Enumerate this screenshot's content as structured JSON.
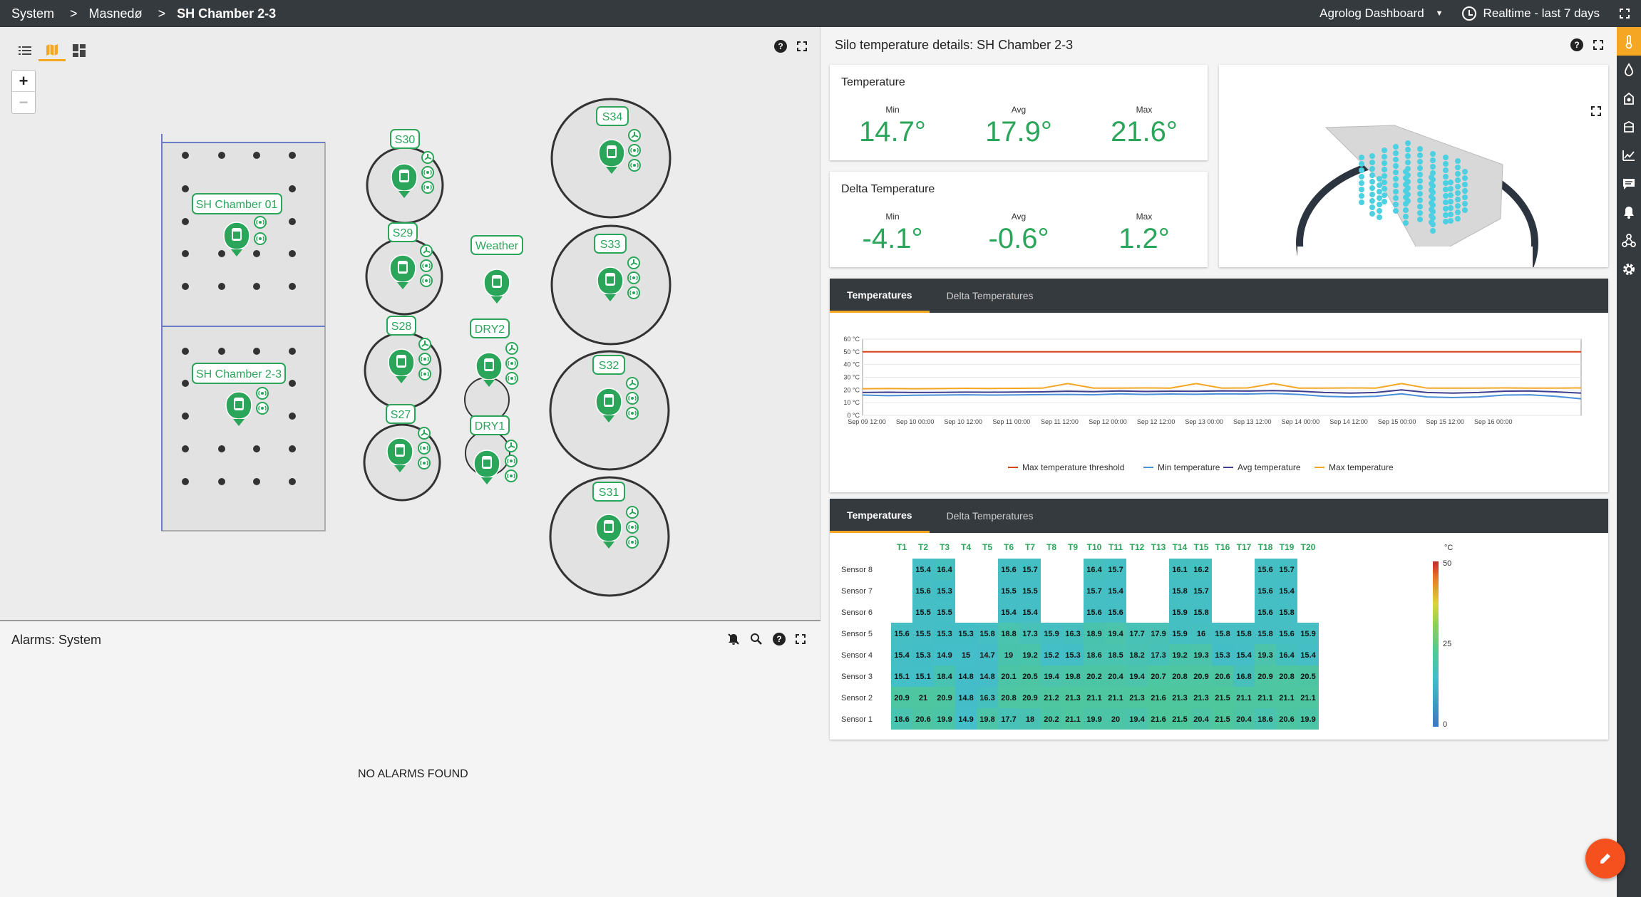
{
  "breadcrumb": {
    "items": [
      "System",
      "Masnedø",
      "SH Chamber 2-3"
    ],
    "separator": ">"
  },
  "header": {
    "dashboard": "Agrolog Dashboard",
    "time_range": "Realtime - last 7 days"
  },
  "map": {
    "labels": {
      "sh01": "SH Chamber 01",
      "sh23": "SH Chamber 2-3",
      "s30": "S30",
      "s29": "S29",
      "s28": "S28",
      "s27": "S27",
      "weather": "Weather",
      "dry2": "DRY2",
      "dry1": "DRY1",
      "s34": "S34",
      "s33": "S33",
      "s32": "S32",
      "s31": "S31"
    },
    "zoom_in": "+",
    "zoom_out": "−"
  },
  "alarms": {
    "title": "Alarms: System",
    "empty": "NO ALARMS FOUND"
  },
  "details": {
    "title": "Silo temperature details: SH Chamber 2-3",
    "temperature": {
      "title": "Temperature",
      "min_label": "Min",
      "avg_label": "Avg",
      "max_label": "Max",
      "min": "14.7°",
      "avg": "17.9°",
      "max": "21.6°"
    },
    "delta": {
      "title": "Delta Temperature",
      "min_label": "Min",
      "avg_label": "Avg",
      "max_label": "Max",
      "min": "-4.1°",
      "avg": "-0.6°",
      "max": "1.2°"
    }
  },
  "tabs": {
    "temperatures": "Temperatures",
    "delta": "Delta Temperatures"
  },
  "colors": {
    "accent": "#f5a623",
    "green": "#2aa55a",
    "topbar": "#353a3f",
    "fab": "#f4511e"
  },
  "chart_data": [
    {
      "type": "line",
      "y_ticks": [
        "0 °C",
        "10 °C",
        "20 °C",
        "30 °C",
        "40 °C",
        "50 °C",
        "60 °C"
      ],
      "ylim": [
        0,
        60
      ],
      "x_ticks": [
        "Sep 09 12:00",
        "Sep 10 00:00",
        "Sep 10 12:00",
        "Sep 11 00:00",
        "Sep 11 12:00",
        "Sep 12 00:00",
        "Sep 12 12:00",
        "Sep 13 00:00",
        "Sep 13 12:00",
        "Sep 14 00:00",
        "Sep 14 12:00",
        "Sep 15 00:00",
        "Sep 15 12:00",
        "Sep 16 00:00"
      ],
      "x": [
        0,
        0.5,
        1,
        1.5,
        2,
        2.5,
        3,
        3.5,
        4,
        4.5,
        5,
        5.5,
        6,
        6.5,
        7,
        7.5,
        8,
        8.5,
        9,
        9.5,
        10,
        10.5,
        11,
        11.5,
        12,
        12.5,
        13,
        13.5,
        14
      ],
      "series": [
        {
          "name": "Max temperature threshold",
          "color": "#d84315",
          "values": [
            50,
            50,
            50,
            50,
            50,
            50,
            50,
            50,
            50,
            50,
            50,
            50,
            50,
            50,
            50,
            50,
            50,
            50,
            50,
            50,
            50,
            50,
            50,
            50,
            50,
            50,
            50,
            50,
            50
          ]
        },
        {
          "name": "Min temperature",
          "color": "#4a90d9",
          "values": [
            16,
            15.5,
            15.8,
            16,
            16.2,
            16,
            16.1,
            16.3,
            16.5,
            16.2,
            17,
            16.5,
            16.8,
            16.6,
            17,
            16.8,
            17.2,
            16.5,
            15,
            14.5,
            15,
            17,
            14.5,
            14,
            14.5,
            16,
            16.2,
            15,
            13
          ]
        },
        {
          "name": "Avg temperature",
          "color": "#3f3f8f",
          "values": [
            18,
            18.2,
            18,
            18.1,
            18.3,
            18.2,
            18.4,
            18.5,
            19,
            18.6,
            19.2,
            18.8,
            19,
            18.9,
            19.3,
            19.1,
            19.5,
            19,
            18,
            17.5,
            18,
            20,
            18,
            17.5,
            18,
            19,
            19.2,
            18.5,
            17.5
          ]
        },
        {
          "name": "Max temperature",
          "color": "#f5a623",
          "values": [
            21,
            21.2,
            21,
            21.1,
            21.3,
            21.2,
            21.3,
            21.4,
            25,
            21.5,
            21.5,
            21.6,
            21.5,
            25,
            21.5,
            21.6,
            25,
            21.5,
            21.5,
            21.6,
            21.5,
            25,
            21.4,
            21.5,
            21.5,
            21.6,
            21.5,
            21.5,
            21.6
          ]
        }
      ]
    },
    {
      "type": "heatmap",
      "columns": [
        "T1",
        "T2",
        "T3",
        "T4",
        "T5",
        "T6",
        "T7",
        "T8",
        "T9",
        "T10",
        "T11",
        "T12",
        "T13",
        "T14",
        "T15",
        "T16",
        "T17",
        "T18",
        "T19",
        "T20"
      ],
      "rows": [
        "Sensor 8",
        "Sensor 7",
        "Sensor 6",
        "Sensor 5",
        "Sensor 4",
        "Sensor 3",
        "Sensor 2",
        "Sensor 1"
      ],
      "unit": "°C",
      "scale_labels": [
        "50",
        "25",
        "0"
      ],
      "scale": [
        0,
        50
      ],
      "values": [
        [
          null,
          "15.4",
          "16.4",
          null,
          null,
          "15.6",
          "15.7",
          null,
          null,
          "16.4",
          "15.7",
          null,
          null,
          "16.1",
          "16.2",
          null,
          null,
          "15.6",
          "15.7",
          null
        ],
        [
          null,
          "15.6",
          "15.3",
          null,
          null,
          "15.5",
          "15.5",
          null,
          null,
          "15.7",
          "15.4",
          null,
          null,
          "15.8",
          "15.7",
          null,
          null,
          "15.6",
          "15.4",
          null
        ],
        [
          null,
          "15.5",
          "15.5",
          null,
          null,
          "15.4",
          "15.4",
          null,
          null,
          "15.6",
          "15.6",
          null,
          null,
          "15.9",
          "15.8",
          null,
          null,
          "15.6",
          "15.8",
          null
        ],
        [
          "15.6",
          "15.5",
          "15.3",
          "15.3",
          "15.8",
          "18.8",
          "17.3",
          "15.9",
          "16.3",
          "18.9",
          "19.4",
          "17.7",
          "17.9",
          "15.9",
          "16",
          "15.8",
          "15.8",
          "15.8",
          "15.6",
          "15.9"
        ],
        [
          "15.4",
          "15.3",
          "14.9",
          "15",
          "14.7",
          "19",
          "19.2",
          "15.2",
          "15.3",
          "18.6",
          "18.5",
          "18.2",
          "17.3",
          "19.2",
          "19.3",
          "15.3",
          "15.4",
          "19.3",
          "16.4",
          "15.4"
        ],
        [
          "15.1",
          "15.1",
          "18.4",
          "14.8",
          "14.8",
          "20.1",
          "20.5",
          "19.4",
          "19.8",
          "20.2",
          "20.4",
          "19.4",
          "20.7",
          "20.8",
          "20.9",
          "20.6",
          "16.8",
          "20.9",
          "20.8",
          "20.5"
        ],
        [
          "20.9",
          "21",
          "20.9",
          "14.8",
          "16.3",
          "20.8",
          "20.9",
          "21.2",
          "21.3",
          "21.1",
          "21.1",
          "21.3",
          "21.6",
          "21.3",
          "21.3",
          "21.5",
          "21.1",
          "21.1",
          "21.1",
          "21.1"
        ],
        [
          "18.6",
          "20.6",
          "19.9",
          "14.9",
          "19.8",
          "17.7",
          "18",
          "20.2",
          "21.1",
          "19.9",
          "20",
          "19.4",
          "21.6",
          "21.5",
          "20.4",
          "21.5",
          "20.4",
          "18.6",
          "20.6",
          "19.9"
        ]
      ]
    }
  ]
}
